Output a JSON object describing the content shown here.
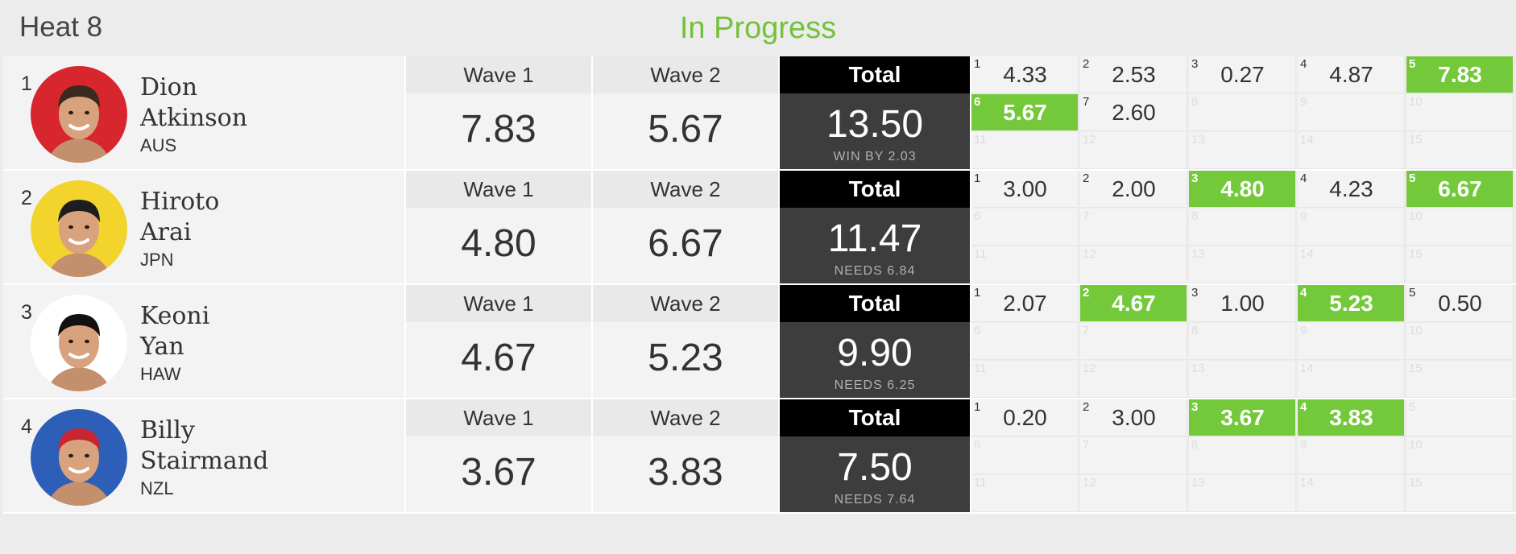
{
  "header": {
    "title": "Heat 8",
    "status": "In Progress"
  },
  "labels": {
    "wave1": "Wave 1",
    "wave2": "Wave 2",
    "total": "Total"
  },
  "colors": {
    "accent_green": "#73c93a",
    "status_green": "#73c23a",
    "total_bg": "#3d3d3d"
  },
  "riders": [
    {
      "rank": "1",
      "first": "Dion",
      "last": "Atkinson",
      "country": "AUS",
      "avatar": "surfer-photo-red",
      "wave1": "7.83",
      "wave2": "5.67",
      "total": "13.50",
      "note": "WIN BY 2.03",
      "scores": [
        {
          "n": "1",
          "v": "4.33",
          "best": false
        },
        {
          "n": "2",
          "v": "2.53",
          "best": false
        },
        {
          "n": "3",
          "v": "0.27",
          "best": false
        },
        {
          "n": "4",
          "v": "4.87",
          "best": false
        },
        {
          "n": "5",
          "v": "7.83",
          "best": true
        },
        {
          "n": "6",
          "v": "5.67",
          "best": true
        },
        {
          "n": "7",
          "v": "2.60",
          "best": false
        },
        {
          "n": "8",
          "v": "",
          "best": false
        },
        {
          "n": "9",
          "v": "",
          "best": false
        },
        {
          "n": "10",
          "v": "",
          "best": false
        },
        {
          "n": "11",
          "v": "",
          "best": false
        },
        {
          "n": "12",
          "v": "",
          "best": false
        },
        {
          "n": "13",
          "v": "",
          "best": false
        },
        {
          "n": "14",
          "v": "",
          "best": false
        },
        {
          "n": "15",
          "v": "",
          "best": false
        }
      ]
    },
    {
      "rank": "2",
      "first": "Hiroto",
      "last": "Arai",
      "country": "JPN",
      "avatar": "surfer-photo-yellow",
      "wave1": "4.80",
      "wave2": "6.67",
      "total": "11.47",
      "note": "NEEDS 6.84",
      "scores": [
        {
          "n": "1",
          "v": "3.00",
          "best": false
        },
        {
          "n": "2",
          "v": "2.00",
          "best": false
        },
        {
          "n": "3",
          "v": "4.80",
          "best": true
        },
        {
          "n": "4",
          "v": "4.23",
          "best": false
        },
        {
          "n": "5",
          "v": "6.67",
          "best": true
        },
        {
          "n": "6",
          "v": "",
          "best": false
        },
        {
          "n": "7",
          "v": "",
          "best": false
        },
        {
          "n": "8",
          "v": "",
          "best": false
        },
        {
          "n": "9",
          "v": "",
          "best": false
        },
        {
          "n": "10",
          "v": "",
          "best": false
        },
        {
          "n": "11",
          "v": "",
          "best": false
        },
        {
          "n": "12",
          "v": "",
          "best": false
        },
        {
          "n": "13",
          "v": "",
          "best": false
        },
        {
          "n": "14",
          "v": "",
          "best": false
        },
        {
          "n": "15",
          "v": "",
          "best": false
        }
      ]
    },
    {
      "rank": "3",
      "first": "Keoni",
      "last": "Yan",
      "country": "HAW",
      "avatar": "surfer-photo-white",
      "wave1": "4.67",
      "wave2": "5.23",
      "total": "9.90",
      "note": "NEEDS 6.25",
      "scores": [
        {
          "n": "1",
          "v": "2.07",
          "best": false
        },
        {
          "n": "2",
          "v": "4.67",
          "best": true
        },
        {
          "n": "3",
          "v": "1.00",
          "best": false
        },
        {
          "n": "4",
          "v": "5.23",
          "best": true
        },
        {
          "n": "5",
          "v": "0.50",
          "best": false
        },
        {
          "n": "6",
          "v": "",
          "best": false
        },
        {
          "n": "7",
          "v": "",
          "best": false
        },
        {
          "n": "8",
          "v": "",
          "best": false
        },
        {
          "n": "9",
          "v": "",
          "best": false
        },
        {
          "n": "10",
          "v": "",
          "best": false
        },
        {
          "n": "11",
          "v": "",
          "best": false
        },
        {
          "n": "12",
          "v": "",
          "best": false
        },
        {
          "n": "13",
          "v": "",
          "best": false
        },
        {
          "n": "14",
          "v": "",
          "best": false
        },
        {
          "n": "15",
          "v": "",
          "best": false
        }
      ]
    },
    {
      "rank": "4",
      "first": "Billy",
      "last": "Stairmand",
      "country": "NZL",
      "avatar": "surfer-photo-blue",
      "wave1": "3.67",
      "wave2": "3.83",
      "total": "7.50",
      "note": "NEEDS 7.64",
      "scores": [
        {
          "n": "1",
          "v": "0.20",
          "best": false
        },
        {
          "n": "2",
          "v": "3.00",
          "best": false
        },
        {
          "n": "3",
          "v": "3.67",
          "best": true
        },
        {
          "n": "4",
          "v": "3.83",
          "best": true
        },
        {
          "n": "5",
          "v": "",
          "best": false
        },
        {
          "n": "6",
          "v": "",
          "best": false
        },
        {
          "n": "7",
          "v": "",
          "best": false
        },
        {
          "n": "8",
          "v": "",
          "best": false
        },
        {
          "n": "9",
          "v": "",
          "best": false
        },
        {
          "n": "10",
          "v": "",
          "best": false
        },
        {
          "n": "11",
          "v": "",
          "best": false
        },
        {
          "n": "12",
          "v": "",
          "best": false
        },
        {
          "n": "13",
          "v": "",
          "best": false
        },
        {
          "n": "14",
          "v": "",
          "best": false
        },
        {
          "n": "15",
          "v": "",
          "best": false
        }
      ]
    }
  ]
}
